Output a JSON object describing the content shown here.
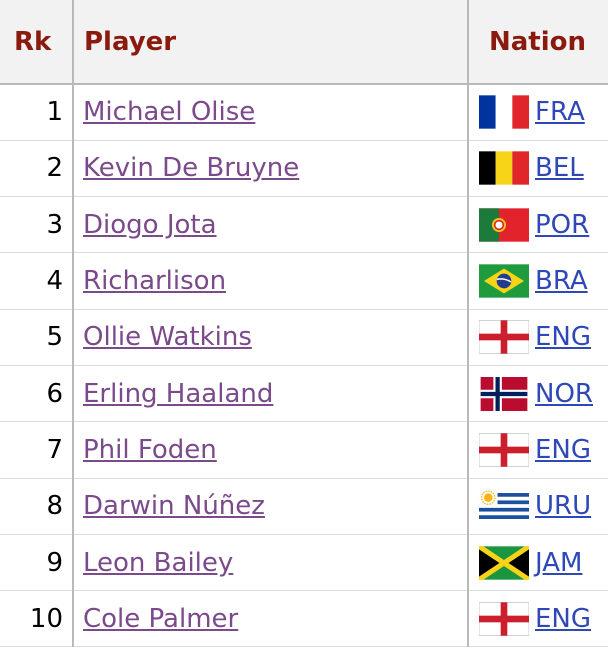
{
  "table": {
    "headers": {
      "rk": "Rk",
      "player": "Player",
      "nation": "Nation"
    },
    "rows": [
      {
        "rk": "1",
        "player": "Michael Olise",
        "code": "FRA",
        "flag": "france-flag-icon"
      },
      {
        "rk": "2",
        "player": "Kevin De Bruyne",
        "code": "BEL",
        "flag": "belgium-flag-icon"
      },
      {
        "rk": "3",
        "player": "Diogo Jota",
        "code": "POR",
        "flag": "portugal-flag-icon"
      },
      {
        "rk": "4",
        "player": "Richarlison",
        "code": "BRA",
        "flag": "brazil-flag-icon"
      },
      {
        "rk": "5",
        "player": "Ollie Watkins",
        "code": "ENG",
        "flag": "england-flag-icon"
      },
      {
        "rk": "6",
        "player": "Erling Haaland",
        "code": "NOR",
        "flag": "norway-flag-icon"
      },
      {
        "rk": "7",
        "player": "Phil Foden",
        "code": "ENG",
        "flag": "england-flag-icon"
      },
      {
        "rk": "8",
        "player": "Darwin Núñez",
        "code": "URU",
        "flag": "uruguay-flag-icon"
      },
      {
        "rk": "9",
        "player": "Leon Bailey",
        "code": "JAM",
        "flag": "jamaica-flag-icon"
      },
      {
        "rk": "10",
        "player": "Cole Palmer",
        "code": "ENG",
        "flag": "england-flag-icon"
      }
    ]
  },
  "colors": {
    "header_text": "#8b1a0e",
    "player_link": "#7a4a8a",
    "nation_link": "#2e48b8"
  }
}
